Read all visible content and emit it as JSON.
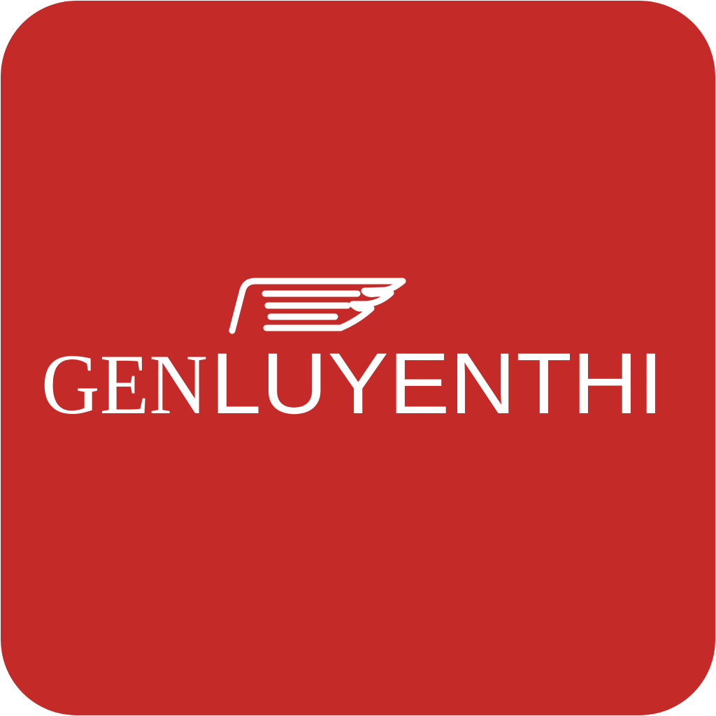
{
  "app_icon": {
    "background_color": "#C42A27",
    "foreground_color": "#FFFFFF",
    "emblem_icon": "wing-emblem-icon",
    "wordmark": {
      "part1": "GEN",
      "part2": "LUYENTHI"
    }
  }
}
